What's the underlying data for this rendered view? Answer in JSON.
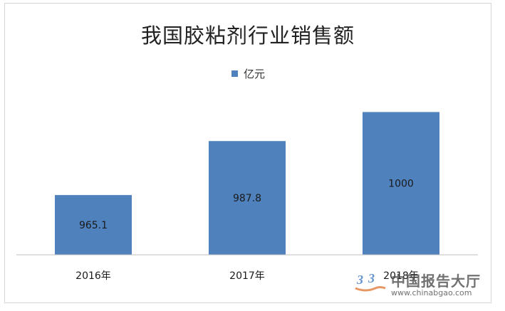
{
  "chart_data": {
    "type": "bar",
    "title": "我国胶粘剂行业销售额",
    "categories": [
      "2016年",
      "2017年",
      "2018年"
    ],
    "series": [
      {
        "name": "亿元",
        "values": [
          965.1,
          987.8,
          1000
        ],
        "color": "#4f81bd"
      }
    ],
    "data_labels": [
      "965.1",
      "987.8",
      "1000"
    ],
    "ylim": [
      940,
      1010
    ],
    "xlabel": "",
    "ylabel": "",
    "grid": false,
    "legend_position": "top-center"
  },
  "watermark": {
    "text": "中国报告大厅",
    "url": "www.chinabgao.com"
  }
}
